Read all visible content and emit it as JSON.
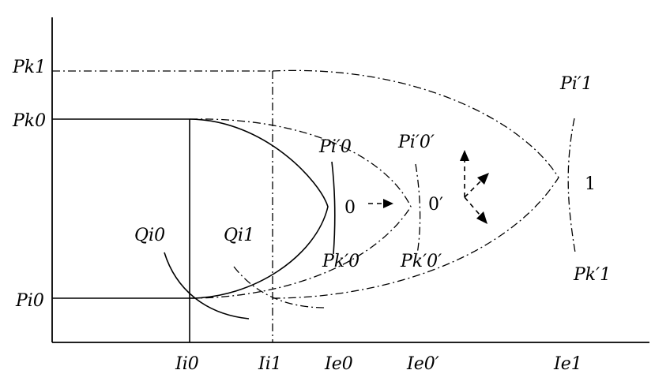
{
  "y_labels": {
    "pk1": "Pk1",
    "pk0": "Pk0",
    "pi0": "Pi0"
  },
  "x_labels": {
    "ii0": "Ii0",
    "ii1": "Ii1",
    "ie0": "Ie0",
    "ie0p": "Ie0′",
    "ie1": "Ie1"
  },
  "curve_labels": {
    "qi0": "Qi0",
    "qi1": "Qi1",
    "pip0": "Pi′0",
    "pip0p": "Pi′0′",
    "pip1": "Pi′1",
    "pkp0": "Pk′0",
    "pkp0p": "Pk′0′",
    "pkp1": "Pk′1"
  },
  "point_labels": {
    "p0": "0",
    "p0p": "0′",
    "p1": "1"
  }
}
